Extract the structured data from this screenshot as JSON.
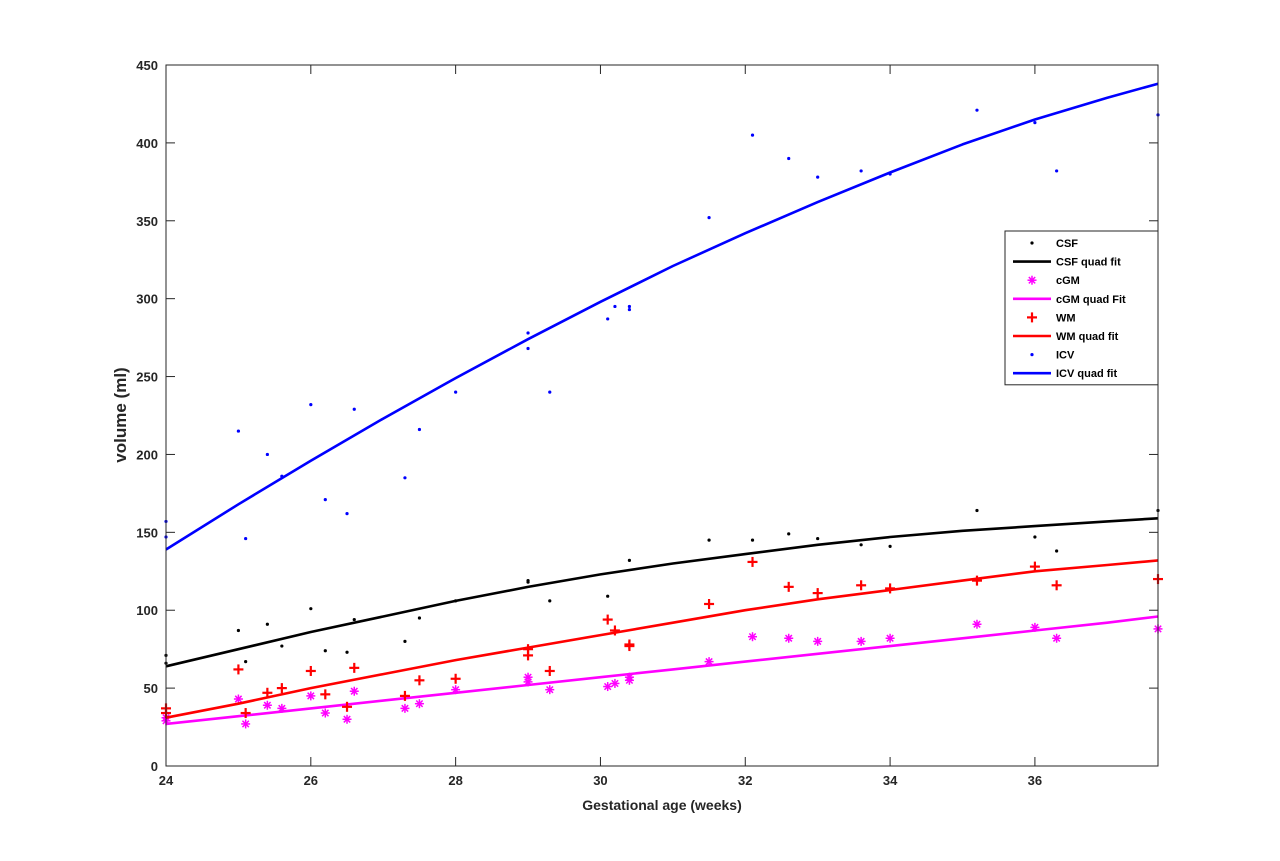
{
  "chart_data": {
    "type": "scatter",
    "xlabel": "Gestational age (weeks)",
    "ylabel": "volume (ml)",
    "xlim": [
      24,
      37.7
    ],
    "ylim": [
      0,
      450
    ],
    "xticks": [
      24,
      26,
      28,
      30,
      32,
      34,
      36
    ],
    "yticks": [
      0,
      50,
      100,
      150,
      200,
      250,
      300,
      350,
      400,
      450
    ],
    "grid": false,
    "legend_position": "right-center",
    "series": [
      {
        "name": "CSF",
        "kind": "points",
        "marker": "dot",
        "color": "#000000",
        "x": [
          24.0,
          24.0,
          25.0,
          25.1,
          25.4,
          25.6,
          26.0,
          26.2,
          26.5,
          26.6,
          27.3,
          27.5,
          28.0,
          29.0,
          29.0,
          29.3,
          30.1,
          30.4,
          31.5,
          32.1,
          32.6,
          33.0,
          33.6,
          34.0,
          35.2,
          36.0,
          36.3,
          37.7
        ],
        "y": [
          71,
          66,
          87,
          67,
          91,
          77,
          101,
          74,
          73,
          94,
          80,
          95,
          106,
          119,
          118,
          106,
          109,
          132,
          145,
          145,
          149,
          146,
          142,
          141,
          164,
          147,
          138,
          164
        ]
      },
      {
        "name": "CSF quad fit",
        "kind": "line",
        "color": "#000000",
        "x": [
          24,
          25,
          26,
          27,
          28,
          29,
          30,
          31,
          32,
          33,
          34,
          35,
          36,
          37,
          37.7
        ],
        "y": [
          64,
          75,
          86,
          96,
          106,
          115,
          123,
          130,
          136,
          142,
          147,
          151,
          154,
          157,
          159
        ]
      },
      {
        "name": "cGM",
        "kind": "points",
        "marker": "asterisk",
        "color": "#ff00ff",
        "x": [
          24.0,
          24.0,
          25.0,
          25.1,
          25.4,
          25.6,
          26.0,
          26.2,
          26.5,
          26.6,
          27.3,
          27.5,
          28.0,
          29.0,
          29.0,
          29.3,
          30.1,
          30.2,
          30.4,
          30.4,
          31.5,
          32.1,
          32.6,
          33.0,
          33.6,
          34.0,
          35.2,
          36.0,
          36.3,
          37.7
        ],
        "y": [
          29,
          31,
          43,
          27,
          39,
          37,
          45,
          34,
          30,
          48,
          37,
          40,
          49,
          57,
          54,
          49,
          51,
          53,
          57,
          55,
          67,
          83,
          82,
          80,
          80,
          82,
          91,
          89,
          82,
          88
        ]
      },
      {
        "name": "cGM quad Fit",
        "kind": "line",
        "color": "#ff00ff",
        "x": [
          24,
          25,
          26,
          27,
          28,
          29,
          30,
          31,
          32,
          33,
          34,
          35,
          36,
          37,
          37.7
        ],
        "y": [
          27,
          32,
          37,
          42,
          47,
          52,
          57,
          62,
          67,
          72,
          77,
          82,
          87,
          92,
          96
        ]
      },
      {
        "name": "WM",
        "kind": "points",
        "marker": "plus",
        "color": "#ff0000",
        "x": [
          24.0,
          24.0,
          25.0,
          25.1,
          25.4,
          25.6,
          26.0,
          26.2,
          26.5,
          26.6,
          27.3,
          27.5,
          28.0,
          29.0,
          29.0,
          29.3,
          30.1,
          30.2,
          30.4,
          30.4,
          31.5,
          32.1,
          32.6,
          33.0,
          33.6,
          34.0,
          35.2,
          36.0,
          36.3,
          37.7
        ],
        "y": [
          37,
          34,
          62,
          34,
          47,
          50,
          61,
          46,
          38,
          63,
          45,
          55,
          56,
          75,
          71,
          61,
          94,
          87,
          78,
          77,
          104,
          131,
          115,
          111,
          116,
          114,
          119,
          128,
          116,
          120
        ]
      },
      {
        "name": "WM quad fit",
        "kind": "line",
        "color": "#ff0000",
        "x": [
          24,
          25,
          26,
          27,
          28,
          29,
          30,
          31,
          32,
          33,
          34,
          35,
          36,
          37,
          37.7
        ],
        "y": [
          31,
          40,
          50,
          59,
          68,
          76,
          84,
          92,
          100,
          107,
          113,
          119,
          125,
          129,
          132
        ]
      },
      {
        "name": "ICV",
        "kind": "points",
        "marker": "dot",
        "color": "#0000ff",
        "x": [
          24.0,
          24.0,
          25.0,
          25.1,
          25.4,
          25.6,
          26.0,
          26.2,
          26.5,
          26.6,
          27.3,
          27.5,
          28.0,
          29.0,
          29.0,
          29.3,
          30.1,
          30.2,
          30.4,
          30.4,
          31.5,
          32.1,
          32.6,
          33.0,
          33.6,
          34.0,
          35.2,
          36.0,
          36.3,
          37.7
        ],
        "y": [
          157,
          147,
          215,
          146,
          200,
          186,
          232,
          171,
          162,
          229,
          185,
          216,
          240,
          278,
          268,
          240,
          287,
          295,
          295,
          293,
          352,
          405,
          390,
          378,
          382,
          380,
          421,
          413,
          382,
          418
        ]
      },
      {
        "name": "ICV quad fit",
        "kind": "line",
        "color": "#0000ff",
        "x": [
          24,
          25,
          26,
          27,
          28,
          29,
          30,
          31,
          32,
          33,
          34,
          35,
          36,
          37,
          37.7
        ],
        "y": [
          139,
          168,
          196,
          223,
          249,
          274,
          298,
          321,
          342,
          362,
          381,
          399,
          415,
          429,
          438
        ]
      }
    ]
  }
}
